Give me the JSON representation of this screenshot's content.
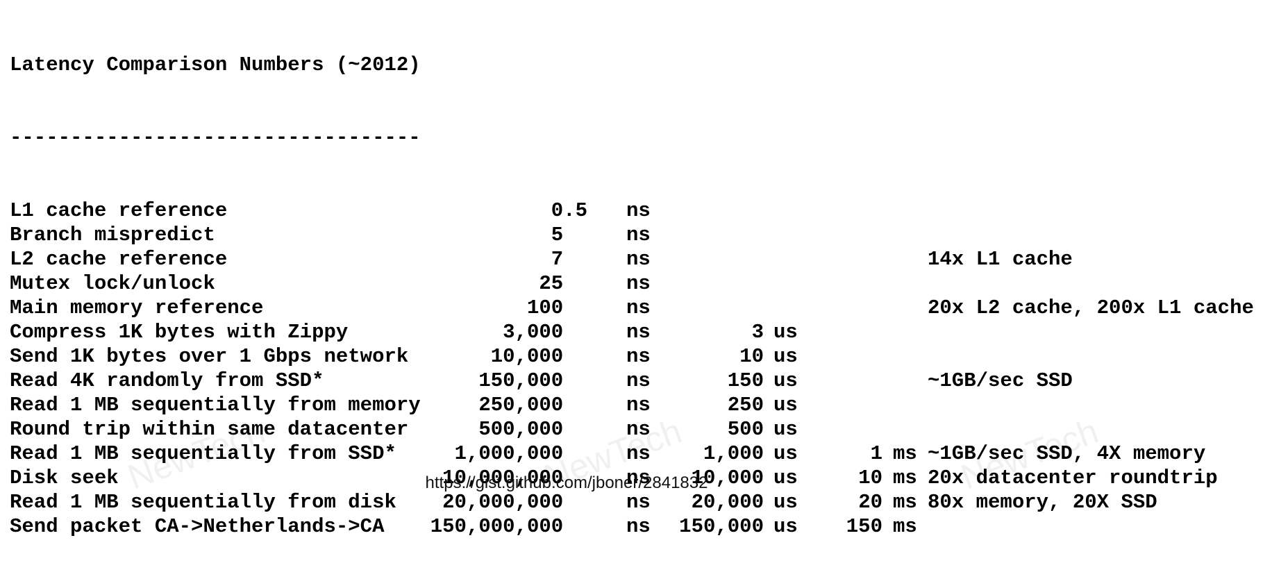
{
  "title": "Latency Comparison Numbers (~2012)",
  "rule": "----------------------------------",
  "rows": [
    {
      "label": "L1 cache reference",
      "ns": "0.5",
      "ns_unit": "ns",
      "us": "",
      "us_unit": "",
      "ms": "",
      "ms_unit": "",
      "note": ""
    },
    {
      "label": "Branch mispredict",
      "ns": "5  ",
      "ns_unit": "ns",
      "us": "",
      "us_unit": "",
      "ms": "",
      "ms_unit": "",
      "note": ""
    },
    {
      "label": "L2 cache reference",
      "ns": "7  ",
      "ns_unit": "ns",
      "us": "",
      "us_unit": "",
      "ms": "",
      "ms_unit": "",
      "note": "14x L1 cache"
    },
    {
      "label": "Mutex lock/unlock",
      "ns": "25  ",
      "ns_unit": "ns",
      "us": "",
      "us_unit": "",
      "ms": "",
      "ms_unit": "",
      "note": ""
    },
    {
      "label": "Main memory reference",
      "ns": "100  ",
      "ns_unit": "ns",
      "us": "",
      "us_unit": "",
      "ms": "",
      "ms_unit": "",
      "note": "20x L2 cache, 200x L1 cache"
    },
    {
      "label": "Compress 1K bytes with Zippy",
      "ns": "3,000  ",
      "ns_unit": "ns",
      "us": "3",
      "us_unit": "us",
      "ms": "",
      "ms_unit": "",
      "note": ""
    },
    {
      "label": "Send 1K bytes over 1 Gbps network",
      "ns": "10,000  ",
      "ns_unit": "ns",
      "us": "10",
      "us_unit": "us",
      "ms": "",
      "ms_unit": "",
      "note": ""
    },
    {
      "label": "Read 4K randomly from SSD*",
      "ns": "150,000  ",
      "ns_unit": "ns",
      "us": "150",
      "us_unit": "us",
      "ms": "",
      "ms_unit": "",
      "note": "~1GB/sec SSD"
    },
    {
      "label": "Read 1 MB sequentially from memory",
      "ns": "250,000  ",
      "ns_unit": "ns",
      "us": "250",
      "us_unit": "us",
      "ms": "",
      "ms_unit": "",
      "note": ""
    },
    {
      "label": "Round trip within same datacenter",
      "ns": "500,000  ",
      "ns_unit": "ns",
      "us": "500",
      "us_unit": "us",
      "ms": "",
      "ms_unit": "",
      "note": ""
    },
    {
      "label": "Read 1 MB sequentially from SSD*",
      "ns": "1,000,000  ",
      "ns_unit": "ns",
      "us": "1,000",
      "us_unit": "us",
      "ms": "1",
      "ms_unit": "ms",
      "note": "~1GB/sec SSD, 4X memory"
    },
    {
      "label": "Disk seek",
      "ns": "10,000,000  ",
      "ns_unit": "ns",
      "us": "10,000",
      "us_unit": "us",
      "ms": "10",
      "ms_unit": "ms",
      "note": "20x datacenter roundtrip"
    },
    {
      "label": "Read 1 MB sequentially from disk",
      "ns": "20,000,000  ",
      "ns_unit": "ns",
      "us": "20,000",
      "us_unit": "us",
      "ms": "20",
      "ms_unit": "ms",
      "note": "80x memory, 20X SSD"
    },
    {
      "label": "Send packet CA->Netherlands->CA",
      "ns": "150,000,000  ",
      "ns_unit": "ns",
      "us": "150,000",
      "us_unit": "us",
      "ms": "150",
      "ms_unit": "ms",
      "note": ""
    }
  ],
  "footer_url": "https://gist.github.com/jboner/2841832",
  "watermark": "NewTech"
}
